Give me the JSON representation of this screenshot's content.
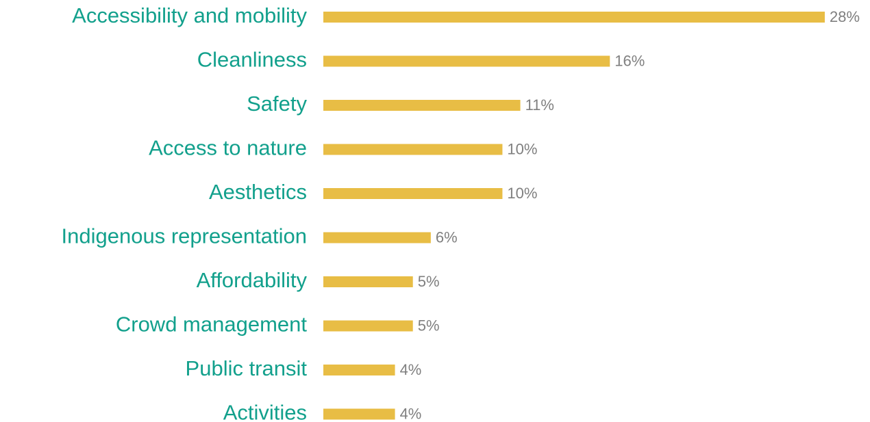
{
  "chart_data": {
    "type": "bar",
    "orientation": "horizontal",
    "categories": [
      "Accessibility and mobility",
      "Cleanliness",
      "Safety",
      "Access to nature",
      "Aesthetics",
      "Indigenous representation",
      "Affordability",
      "Crowd management",
      "Public transit",
      "Activities"
    ],
    "values": [
      28,
      16,
      11,
      10,
      10,
      6,
      5,
      5,
      4,
      4
    ],
    "value_labels": [
      "28%",
      "16%",
      "11%",
      "10%",
      "10%",
      "6%",
      "5%",
      "5%",
      "4%",
      "4%"
    ],
    "color": "#e8bd45"
  }
}
